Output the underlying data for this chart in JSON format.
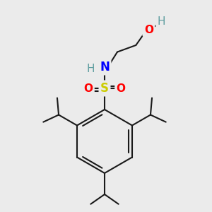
{
  "bg_color": "#ebebeb",
  "bond_color": "#1a1a1a",
  "atom_colors": {
    "N": "#0000ff",
    "O": "#ff0000",
    "S": "#cccc00",
    "H": "#5f9ea0"
  },
  "fig_size": [
    3.0,
    3.0
  ],
  "dpi": 100
}
